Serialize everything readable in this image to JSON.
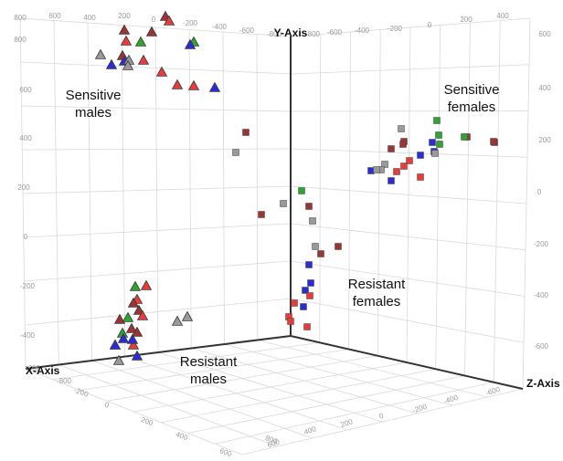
{
  "chart_data": {
    "type": "scatter",
    "title": "",
    "axes": {
      "x": {
        "label": "X-Axis",
        "ticks": [
          "-200",
          "0",
          "200",
          "400",
          "600",
          "800"
        ]
      },
      "y": {
        "label": "Y-Axis",
        "ticks": [
          "-600",
          "-400",
          "-200",
          "0",
          "200",
          "400",
          "600"
        ]
      },
      "z": {
        "label": "Z-Axis",
        "ticks": [
          "-600",
          "-400",
          "-200",
          "0",
          "200",
          "400"
        ]
      }
    },
    "top_ticks": [
      "800",
      "600",
      "400",
      "200",
      "0",
      "-200",
      "-400",
      "-600",
      "-800",
      "-800",
      "-600",
      "-400",
      "-200",
      "0",
      "200",
      "400"
    ],
    "left_wall_ticks": [
      "800",
      "600",
      "400",
      "200",
      "0",
      "-200",
      "-400",
      "-600",
      "-800"
    ],
    "right_wall_ticks": [
      "600",
      "400",
      "200",
      "0",
      "-200",
      "-400",
      "-600"
    ],
    "floor_x_ticks": [
      "-200",
      "0",
      "200",
      "400",
      "600",
      "800"
    ],
    "floor_z_ticks": [
      "-600",
      "-400",
      "-200",
      "0",
      "200",
      "400",
      "600"
    ],
    "grid": true,
    "group_labels": [
      {
        "text": "Sensitive males",
        "lines": [
          "Sensitive",
          "males"
        ]
      },
      {
        "text": "Sensitive females",
        "lines": [
          "Sensitive",
          "females"
        ]
      },
      {
        "text": "Resistant females",
        "lines": [
          "Resistant",
          "females"
        ]
      },
      {
        "text": "Resistant males",
        "lines": [
          "Resistant",
          "males"
        ]
      }
    ],
    "colors": {
      "darkred": "#9c3434",
      "red": "#ea3b3b",
      "green": "#2ea52e",
      "blue": "#2b2bd9",
      "gray": "#9a9a9a"
    },
    "series": [
      {
        "group": "Sensitive males",
        "marker": "triangle",
        "points": [
          {
            "color": "darkred"
          },
          {
            "color": "red"
          },
          {
            "color": "darkred"
          },
          {
            "color": "darkred"
          },
          {
            "color": "green"
          },
          {
            "color": "red"
          },
          {
            "color": "green"
          },
          {
            "color": "blue"
          },
          {
            "color": "gray"
          },
          {
            "color": "darkred"
          },
          {
            "color": "blue"
          },
          {
            "color": "blue"
          },
          {
            "color": "gray"
          },
          {
            "color": "red"
          },
          {
            "color": "red"
          },
          {
            "color": "red"
          },
          {
            "color": "red"
          },
          {
            "color": "blue"
          },
          {
            "color": "gray"
          }
        ]
      },
      {
        "group": "Sensitive females",
        "marker": "cube",
        "points": [
          {
            "color": "gray"
          },
          {
            "color": "green"
          },
          {
            "color": "darkred"
          },
          {
            "color": "darkred"
          },
          {
            "color": "gray"
          },
          {
            "color": "green"
          },
          {
            "color": "blue"
          },
          {
            "color": "green"
          },
          {
            "color": "darkred"
          },
          {
            "color": "darkred"
          },
          {
            "color": "darkred"
          },
          {
            "color": "blue"
          },
          {
            "color": "gray"
          },
          {
            "color": "blue"
          },
          {
            "color": "gray"
          },
          {
            "color": "red"
          },
          {
            "color": "red"
          },
          {
            "color": "blue"
          },
          {
            "color": "red"
          },
          {
            "color": "gray"
          },
          {
            "color": "blue"
          },
          {
            "color": "red"
          },
          {
            "color": "green"
          },
          {
            "color": "darkred"
          }
        ]
      },
      {
        "group": "Resistant females",
        "marker": "cube",
        "points": [
          {
            "color": "darkred"
          },
          {
            "color": "gray"
          },
          {
            "color": "darkred"
          },
          {
            "color": "gray"
          },
          {
            "color": "green"
          },
          {
            "color": "darkred"
          },
          {
            "color": "gray"
          },
          {
            "color": "darkred"
          },
          {
            "color": "gray"
          },
          {
            "color": "darkred"
          },
          {
            "color": "blue"
          },
          {
            "color": "blue"
          },
          {
            "color": "blue"
          },
          {
            "color": "red"
          },
          {
            "color": "blue"
          },
          {
            "color": "red"
          },
          {
            "color": "red"
          },
          {
            "color": "red"
          },
          {
            "color": "red"
          }
        ]
      },
      {
        "group": "Resistant males",
        "marker": "triangle",
        "points": [
          {
            "color": "green"
          },
          {
            "color": "red"
          },
          {
            "color": "red"
          },
          {
            "color": "darkred"
          },
          {
            "color": "green"
          },
          {
            "color": "darkred"
          },
          {
            "color": "red"
          },
          {
            "color": "darkred"
          },
          {
            "color": "darkred"
          },
          {
            "color": "green"
          },
          {
            "color": "darkred"
          },
          {
            "color": "gray"
          },
          {
            "color": "gray"
          },
          {
            "color": "red"
          },
          {
            "color": "blue"
          },
          {
            "color": "blue"
          },
          {
            "color": "blue"
          },
          {
            "color": "gray"
          },
          {
            "color": "blue"
          },
          {
            "color": "blue"
          }
        ]
      }
    ]
  }
}
